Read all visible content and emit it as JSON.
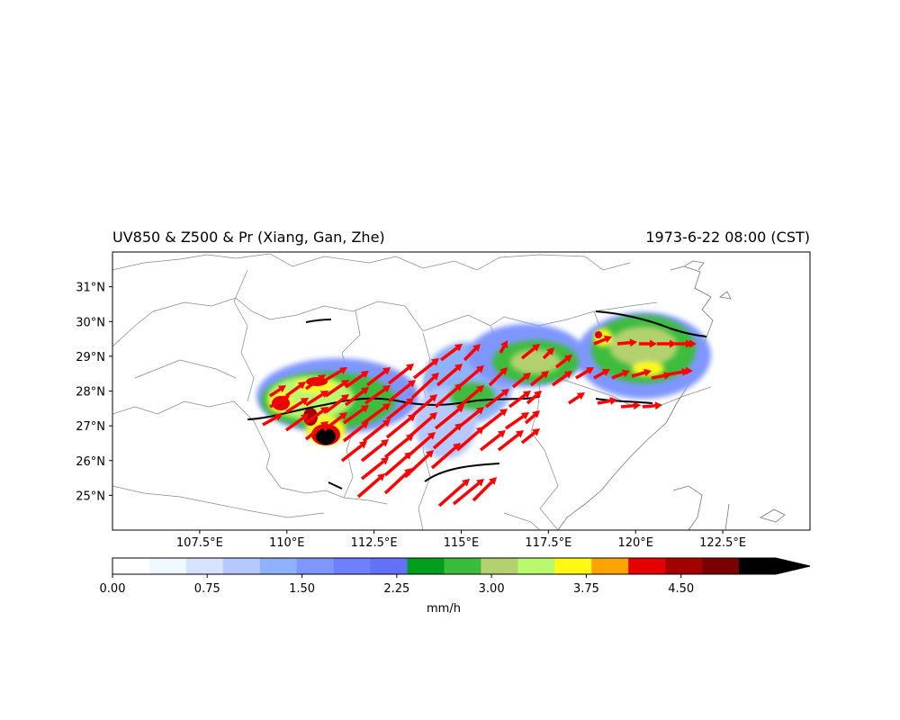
{
  "map": {
    "title_left": "UV850 & Z500 & Pr (Xiang, Gan, Zhe)",
    "title_right": "1973-6-22 08:00 (CST)",
    "lon_range": [
      105,
      125
    ],
    "lat_range": [
      24,
      32
    ],
    "lon_ticks": [
      "107.5°E",
      "110°E",
      "112.5°E",
      "115°E",
      "117.5°E",
      "120°E",
      "122.5°E"
    ],
    "lon_tick_values": [
      107.5,
      110,
      112.5,
      115,
      117.5,
      120,
      122.5
    ],
    "lat_ticks": [
      "25°N",
      "26°N",
      "27°N",
      "28°N",
      "29°N",
      "30°N",
      "31°N"
    ],
    "lat_tick_values": [
      25,
      26,
      27,
      28,
      29,
      30,
      31
    ],
    "vector_color": "#ff0000",
    "contour_color": "#000000",
    "border_color": "#888888"
  },
  "colorbar": {
    "unit": "mm/h",
    "tick_labels": [
      "0.00",
      "0.75",
      "1.50",
      "2.25",
      "3.00",
      "3.75",
      "4.50"
    ],
    "tick_values": [
      0,
      0.75,
      1.5,
      2.25,
      3.0,
      3.75,
      4.5
    ],
    "max": 5.25,
    "extend": "max",
    "colors": [
      "#ffffff",
      "#f0f8ff",
      "#d6e2ff",
      "#b5c9ff",
      "#8eb2ff",
      "#7f96ff",
      "#6e7fff",
      "#6370f8",
      "#009e1e",
      "#3cbc3c",
      "#b3d16e",
      "#b9f96e",
      "#fff914",
      "#ffa300",
      "#e50000",
      "#a50000",
      "#7a0000",
      "#000000"
    ]
  }
}
